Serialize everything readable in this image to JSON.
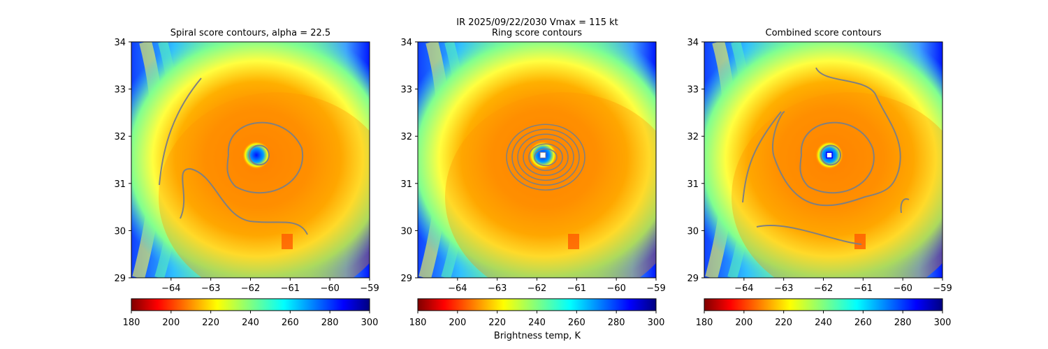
{
  "suptitle": "IR  2025/09/22/2030    Vmax = 115 kt",
  "colorbar_label": "Brightness temp, K",
  "chart_data": {
    "type": "heatmap",
    "colormap": "jet",
    "xlim": [
      -65,
      -59
    ],
    "ylim": [
      29,
      34
    ],
    "xticks": [
      -64,
      -63,
      -62,
      -61,
      -60,
      -59
    ],
    "yticks": [
      29,
      30,
      31,
      32,
      33,
      34
    ],
    "xtick_labels": [
      "−64",
      "−63",
      "−62",
      "−61",
      "−60",
      "−59"
    ],
    "ytick_labels": [
      "29",
      "30",
      "31",
      "32",
      "33",
      "34"
    ],
    "colorbar": {
      "range": [
        180,
        300
      ],
      "ticks": [
        180,
        200,
        220,
        240,
        260,
        280,
        300
      ],
      "tick_labels": [
        "180",
        "200",
        "220",
        "240",
        "260",
        "280",
        "300"
      ]
    },
    "panels": [
      {
        "title": "Spiral score contours, alpha = 22.5",
        "contour_color": "#808080",
        "center_marker": false
      },
      {
        "title": "Ring score contours",
        "contour_color": "#808080",
        "center_marker": true,
        "center": [
          -61.85,
          31.6
        ]
      },
      {
        "title": "Combined score contours",
        "contour_color": "#808080",
        "center_marker": true,
        "center": [
          -61.8,
          31.6
        ]
      }
    ]
  }
}
